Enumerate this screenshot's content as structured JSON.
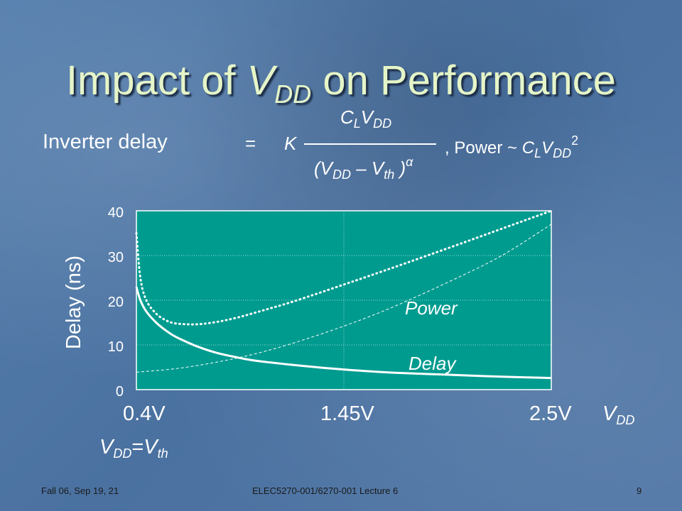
{
  "slide": {
    "title_prefix": "Impact of ",
    "title_symbol": "V",
    "title_subscript": "DD",
    "title_suffix": " on Performance"
  },
  "formula": {
    "label": "Inverter delay",
    "equals": "=",
    "k": "K",
    "num_c": "C",
    "num_c_sub": "L",
    "num_v": "V",
    "num_v_sub": "DD",
    "den_open": "(V",
    "den_vdd_sub": "DD",
    "den_minus": " – V",
    "den_vth_sub": "th",
    "den_close": " )",
    "den_alpha": "α",
    "power_prefix": ", Power ~ ",
    "power_c": "C",
    "power_c_sub": "L",
    "power_v": "V",
    "power_v_sub": "DD",
    "power_exp": "2"
  },
  "chart_data": {
    "type": "line",
    "ylabel": "Delay (ns)",
    "ylim": [
      0,
      40
    ],
    "xlim": [
      0.4,
      2.5
    ],
    "y_ticks": [
      "0",
      "10",
      "20",
      "30",
      "40"
    ],
    "x_tick_labels": [
      "0.4V",
      "1.45V",
      "2.5V"
    ],
    "x_label_symbol": "V",
    "x_label_sub": "DD",
    "x_min_annotation": {
      "v": "V",
      "v_sub": "DD",
      "eq": "=",
      "vth": "V",
      "vth_sub": "th"
    },
    "grid": true,
    "series": [
      {
        "name": "Delay",
        "style": "solid",
        "x": [
          0.4,
          0.42,
          0.45,
          0.5,
          0.55,
          0.6,
          0.7,
          0.8,
          0.9,
          1.0,
          1.2,
          1.45,
          1.7,
          2.0,
          2.25,
          2.5
        ],
        "y": [
          23,
          20,
          17.5,
          15,
          13.2,
          11.8,
          9.8,
          8.3,
          7.3,
          6.5,
          5.5,
          4.5,
          3.8,
          3.3,
          2.9,
          2.6
        ]
      },
      {
        "name": "Power",
        "style": "dotted",
        "x": [
          0.4,
          0.42,
          0.45,
          0.5,
          0.55,
          0.6,
          0.7,
          0.8,
          0.9,
          1.0,
          1.2,
          1.45,
          1.7,
          2.0,
          2.25,
          2.5
        ],
        "y": [
          35,
          25,
          20,
          17,
          15.5,
          14.8,
          14.6,
          15.1,
          16,
          17.2,
          19.8,
          23.5,
          27.3,
          32,
          36,
          40
        ]
      },
      {
        "name": "",
        "style": "dashed",
        "x": [
          0.4,
          0.6,
          0.8,
          1.0,
          1.2,
          1.45,
          1.7,
          2.0,
          2.25,
          2.5
        ],
        "y": [
          3.9,
          4.7,
          6.1,
          8,
          10.5,
          14.2,
          18.5,
          24.5,
          30,
          37
        ]
      }
    ],
    "annotations": [
      "Power",
      "Delay"
    ],
    "plot_color": "#009b8f"
  },
  "footer": {
    "left": "Fall 06, Sep 19, 21",
    "center": "ELEC5270-001/6270-001 Lecture 6",
    "page": "9"
  }
}
